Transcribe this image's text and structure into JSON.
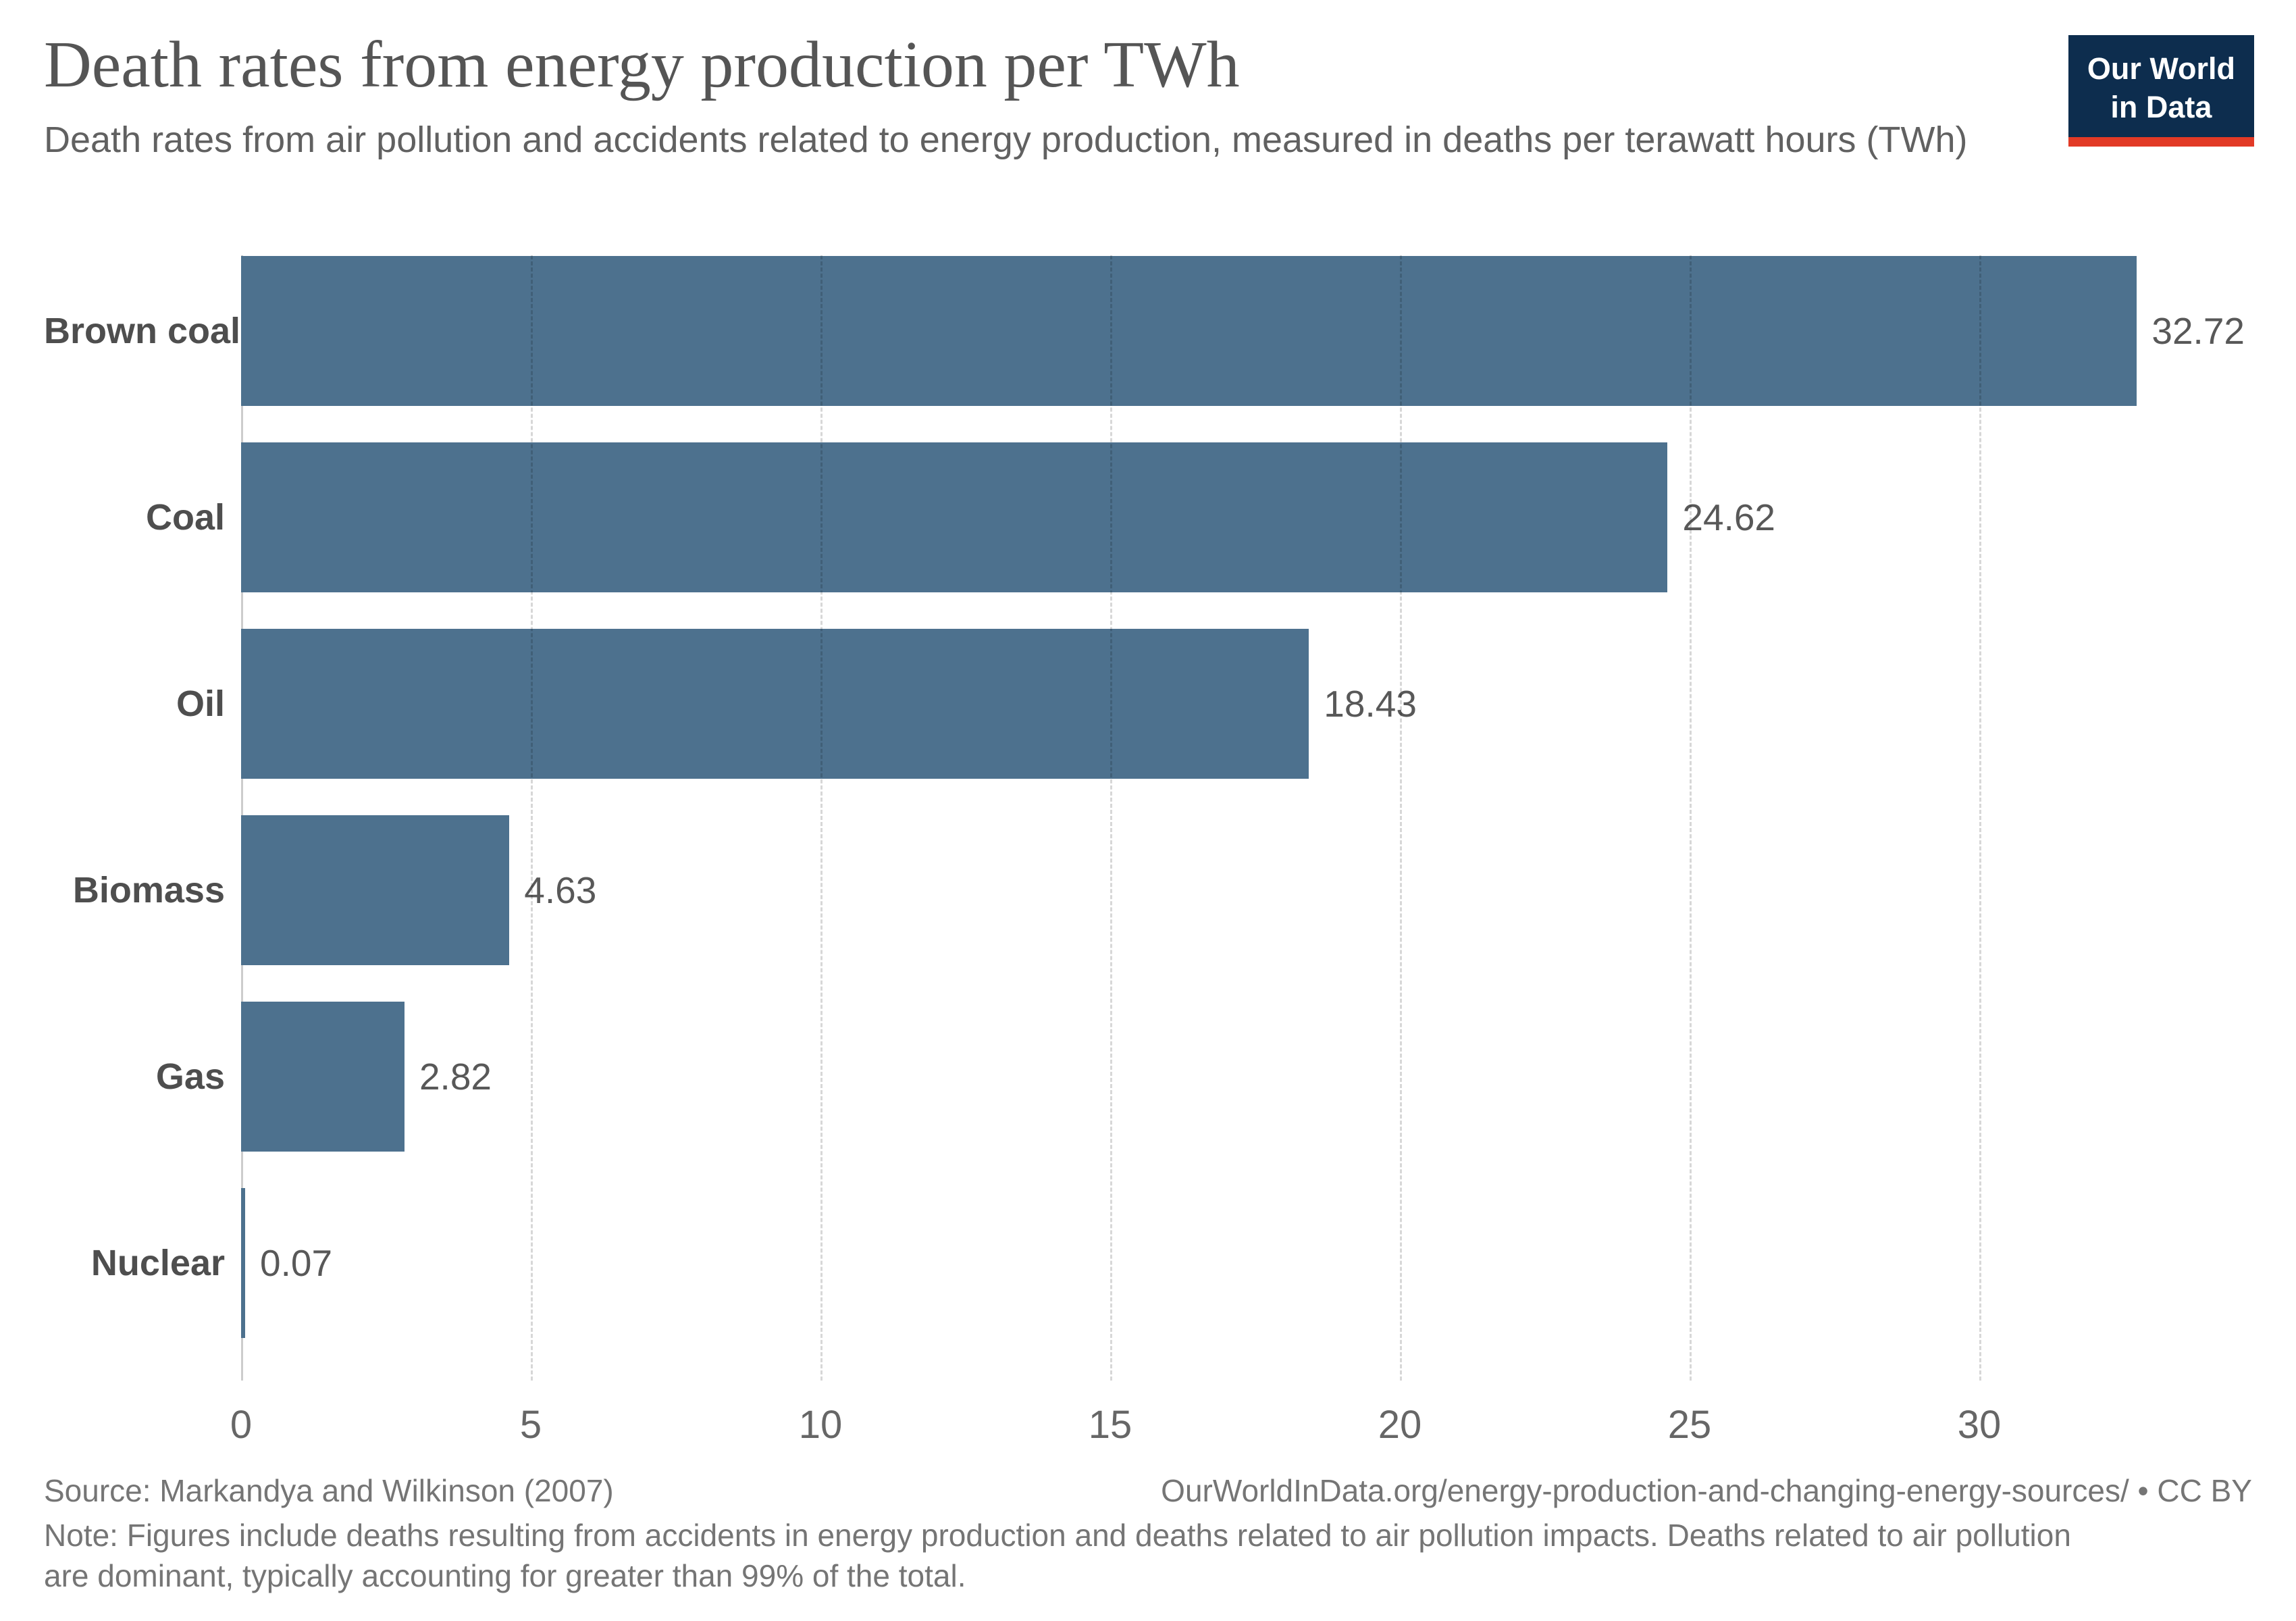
{
  "logo": {
    "line1": "Our World",
    "line2": "in Data",
    "bg_color": "#0d2d4e",
    "stripe_color": "#e23a26"
  },
  "chart_data": {
    "type": "bar",
    "orientation": "horizontal",
    "title": "Death rates from energy production per TWh",
    "subtitle": "Death rates from air pollution and accidents related to energy production, measured in deaths per terawatt hours (TWh)",
    "categories": [
      "Brown coal",
      "Coal",
      "Oil",
      "Biomass",
      "Gas",
      "Nuclear"
    ],
    "values": [
      32.72,
      24.62,
      18.43,
      4.63,
      2.82,
      0.07
    ],
    "value_labels": [
      "32.72",
      "24.62",
      "18.43",
      "4.63",
      "2.82",
      "0.07"
    ],
    "xlabel": "",
    "ylabel": "",
    "xlim": [
      0,
      35
    ],
    "xticks": [
      0,
      5,
      10,
      15,
      20,
      25,
      30
    ],
    "grid": "vertical-dashed",
    "legend": "none",
    "bar_color": "#4d718e"
  },
  "footer": {
    "source": "Source: Markandya and Wilkinson (2007)",
    "link": "OurWorldInData.org/energy-production-and-changing-energy-sources/ • CC BY",
    "note": "Note: Figures include deaths resulting from accidents in energy production and deaths related to air pollution impacts. Deaths related to air pollution are dominant, typically accounting for greater than 99% of the total."
  }
}
